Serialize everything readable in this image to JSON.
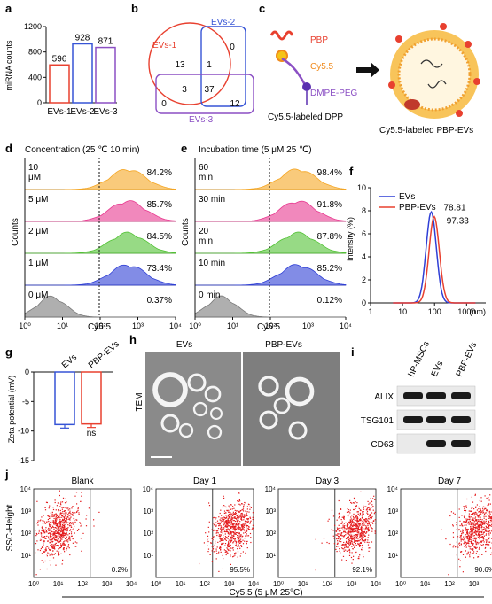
{
  "panels": {
    "a": {
      "label": "a"
    },
    "b": {
      "label": "b"
    },
    "c": {
      "label": "c"
    },
    "d": {
      "label": "d"
    },
    "e": {
      "label": "e"
    },
    "f": {
      "label": "f"
    },
    "g": {
      "label": "g"
    },
    "h": {
      "label": "h"
    },
    "i": {
      "label": "i"
    },
    "j": {
      "label": "j"
    }
  },
  "a": {
    "ylabel": "miRNA counts",
    "yticks": [
      "0",
      "400",
      "800",
      "1200"
    ]
  },
  "b": {
    "set1": "EVs-1",
    "set2": "EVs-2",
    "set3": "EVs-3",
    "regions": {
      "only1": "13",
      "only2": "0",
      "only3": "0",
      "s12": "1",
      "s13": "3",
      "s23": "12",
      "s123": "37"
    }
  },
  "c": {
    "pbp": "PBP",
    "cy55": "Cy5.5",
    "dmpe": "DMPE-PEG",
    "left_caption": "Cy5.5-labeled DPP",
    "right_caption": "Cy5.5-labeled PBP-EVs"
  },
  "d": {
    "title": "Concentration (25 ℃ 10 min)",
    "rows": [
      {
        "label": "10\nμM",
        "pct": "84.2%",
        "color": "#f5a623"
      },
      {
        "label": "5 μM",
        "pct": "85.7%",
        "color": "#e8388f"
      },
      {
        "label": "2 μM",
        "pct": "84.5%",
        "color": "#52c234"
      },
      {
        "label": "1 μM",
        "pct": "73.4%",
        "color": "#2f3fd6"
      },
      {
        "label": "0 μM",
        "pct": "0.37%",
        "color": "#7a7a7a"
      }
    ],
    "ylabel": "Counts",
    "xlabel": "Cy5.5",
    "xticks": [
      "10⁰",
      "10¹",
      "10²",
      "10³",
      "10⁴"
    ]
  },
  "e": {
    "title": "Incubation time (5 μM 25 ℃)",
    "rows": [
      {
        "label": "60\nmin",
        "pct": "98.4%",
        "color": "#f5a623"
      },
      {
        "label": "30 min",
        "pct": "91.8%",
        "color": "#e8388f"
      },
      {
        "label": "20\nmin",
        "pct": "87.8%",
        "color": "#52c234"
      },
      {
        "label": "10 min",
        "pct": "85.2%",
        "color": "#2f3fd6"
      },
      {
        "label": "0 min",
        "pct": "0.12%",
        "color": "#7a7a7a"
      }
    ],
    "ylabel": "Counts",
    "xlabel": "Cy5.5",
    "xticks": [
      "10⁰",
      "10¹",
      "10²",
      "10³",
      "10⁴"
    ]
  },
  "g": {
    "ylabel": "Zeta potential (mV)",
    "yticks": [
      "0",
      "-5",
      "-10",
      "-15"
    ],
    "stat": "ns"
  },
  "h": {
    "left_title": "EVs",
    "right_title": "PBP-EVs",
    "side": "TEM"
  },
  "i": {
    "columns": [
      "hP-MSCs",
      "EVs",
      "PBP-EVs"
    ],
    "rows": [
      "ALIX",
      "TSG101",
      "CD63"
    ]
  },
  "j": {
    "panels": [
      {
        "title": "Blank",
        "pct": "0.2%",
        "density": 0
      },
      {
        "title": "Day 1",
        "pct": "95.5%",
        "density": 1
      },
      {
        "title": "Day 3",
        "pct": "92.1%",
        "density": 1
      },
      {
        "title": "Day 7",
        "pct": "90.6%",
        "density": 1
      }
    ],
    "ylabel": "SSC-Height",
    "xlabel": "Cy5.5 (5 μM 25°C)",
    "xticks": [
      "10⁰",
      "10¹",
      "10²",
      "10³",
      "10⁴"
    ],
    "yticks": [
      "10¹",
      "10²",
      "10³",
      "10⁴"
    ]
  },
  "chart_data": [
    {
      "type": "bar",
      "categories": [
        "EVs-1",
        "EVs-2",
        "EVs-3"
      ],
      "values": [
        596,
        928,
        871
      ],
      "ylabel": "miRNA counts",
      "ylim": [
        0,
        1200
      ],
      "colors": [
        "#e8402f",
        "#3654d6",
        "#8b4fc4"
      ]
    },
    {
      "type": "line",
      "xlabel": "(nm)",
      "ylabel": "Intensity (%)",
      "xscale": "log",
      "xticks": [
        "1",
        "10",
        "100",
        "1000"
      ],
      "yticks": [
        "0",
        "2",
        "4",
        "6",
        "8",
        "10"
      ],
      "ylim": [
        0,
        10
      ],
      "series": [
        {
          "name": "EVs",
          "color": "#2f3fd6",
          "peak_x": 78.81,
          "peak_y": 7.9,
          "peak_label": "78.81"
        },
        {
          "name": "PBP-EVs",
          "color": "#e8402f",
          "peak_x": 97.33,
          "peak_y": 7.5,
          "peak_label": "97.33"
        }
      ]
    },
    {
      "type": "bar",
      "categories": [
        "EVs",
        "PBP-EVs"
      ],
      "values": [
        -8.9,
        -8.8
      ],
      "errors": [
        0.6,
        0.6
      ],
      "ylabel": "Zeta potential (mV)",
      "ylim": [
        -15,
        0
      ],
      "colors": [
        "#3654d6",
        "#e8402f"
      ]
    }
  ]
}
